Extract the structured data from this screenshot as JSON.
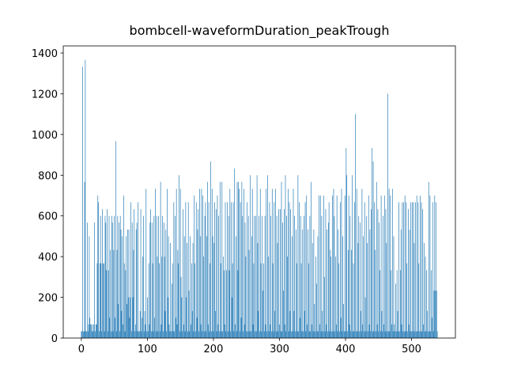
{
  "chart_data": {
    "type": "bar",
    "title": "bombcell-waveformDuration_peakTrough",
    "color": "#1f77b4",
    "xlim": [
      -27.4,
      566.4
    ],
    "xticks": [
      0,
      100,
      200,
      300,
      400,
      500
    ],
    "ylim": [
      0,
      1435
    ],
    "yticks": [
      0,
      200,
      400,
      600,
      800,
      1000,
      1200,
      1400
    ],
    "values": [
      33,
      33,
      1333,
      33,
      33,
      767,
      1367,
      33,
      33,
      567,
      33,
      67,
      500,
      100,
      67,
      67,
      33,
      67,
      33,
      67,
      567,
      33,
      67,
      67,
      367,
      700,
      667,
      33,
      367,
      600,
      367,
      33,
      633,
      367,
      367,
      33,
      600,
      567,
      333,
      633,
      33,
      333,
      600,
      100,
      433,
      33,
      600,
      567,
      33,
      433,
      600,
      100,
      967,
      33,
      433,
      600,
      167,
      567,
      33,
      600,
      533,
      133,
      500,
      67,
      700,
      367,
      33,
      333,
      500,
      167,
      533,
      200,
      533,
      100,
      200,
      667,
      33,
      567,
      200,
      433,
      633,
      33,
      67,
      533,
      567,
      33,
      667,
      33,
      33,
      133,
      633,
      33,
      100,
      400,
      600,
      33,
      133,
      67,
      733,
      33,
      200,
      33,
      367,
      67,
      567,
      633,
      33,
      567,
      367,
      33,
      600,
      100,
      733,
      33,
      600,
      400,
      33,
      600,
      367,
      33,
      767,
      67,
      400,
      600,
      33,
      567,
      400,
      133,
      533,
      33,
      733,
      200,
      500,
      67,
      33,
      467,
      33,
      267,
      367,
      33,
      667,
      33,
      600,
      100,
      733,
      67,
      433,
      367,
      800,
      33,
      733,
      300,
      200,
      33,
      633,
      67,
      500,
      33,
      667,
      200,
      467,
      33,
      667,
      233,
      33,
      500,
      67,
      367,
      133,
      467,
      33,
      700,
      367,
      33,
      667,
      100,
      533,
      633,
      33,
      733,
      500,
      67,
      733,
      33,
      700,
      400,
      33,
      600,
      667,
      33,
      500,
      767,
      67,
      667,
      33,
      367,
      867,
      33,
      733,
      500,
      33,
      467,
      667,
      133,
      633,
      33,
      700,
      67,
      600,
      33,
      767,
      367,
      33,
      767,
      33,
      400,
      333,
      67,
      667,
      33,
      333,
      667,
      33,
      600,
      333,
      733,
      33,
      667,
      200,
      367,
      667,
      33,
      833,
      67,
      500,
      33,
      767,
      333,
      767,
      733,
      33,
      667,
      100,
      767,
      600,
      33,
      733,
      67,
      567,
      400,
      33,
      667,
      33,
      600,
      433,
      33,
      800,
      33,
      500,
      733,
      67,
      367,
      600,
      33,
      600,
      33,
      800,
      467,
      133,
      600,
      33,
      733,
      367,
      33,
      600,
      233,
      367,
      33,
      600,
      67,
      733,
      33,
      800,
      400,
      33,
      667,
      67,
      600,
      33,
      733,
      367,
      33,
      667,
      133,
      733,
      33,
      600,
      467,
      33,
      633,
      67,
      633,
      33,
      767,
      33,
      567,
      233,
      633,
      67,
      800,
      33,
      600,
      400,
      733,
      33,
      667,
      133,
      633,
      33,
      500,
      33,
      733,
      133,
      600,
      33,
      533,
      367,
      33,
      800,
      33,
      667,
      100,
      600,
      367,
      33,
      533,
      33,
      600,
      133,
      667,
      33,
      700,
      67,
      533,
      367,
      33,
      600,
      33,
      767,
      67,
      467,
      33,
      533,
      167,
      33,
      400,
      267,
      33,
      500,
      33,
      700,
      67,
      700,
      33,
      600,
      133,
      33,
      700,
      300,
      33,
      633,
      67,
      533,
      33,
      567,
      667,
      33,
      433,
      400,
      33,
      700,
      33,
      733,
      600,
      33,
      400,
      67,
      700,
      33,
      533,
      367,
      33,
      667,
      100,
      733,
      33,
      500,
      167,
      33,
      700,
      33,
      933,
      800,
      33,
      433,
      700,
      67,
      600,
      33,
      433,
      800,
      33,
      367,
      33,
      667,
      1100,
      33,
      733,
      33,
      467,
      600,
      33,
      567,
      133,
      33,
      733,
      67,
      500,
      33,
      667,
      200,
      33,
      600,
      467,
      33,
      700,
      67,
      533,
      33,
      633,
      933,
      33,
      867,
      33,
      667,
      433,
      33,
      767,
      67,
      633,
      33,
      567,
      333,
      33,
      700,
      133,
      33,
      600,
      67,
      700,
      33,
      633,
      467,
      33,
      1200,
      33,
      733,
      33,
      700,
      333,
      67,
      733,
      33,
      500,
      67,
      33,
      267,
      33,
      333,
      133,
      33,
      667,
      33,
      333,
      533,
      67,
      667,
      33,
      667,
      33,
      700,
      33,
      667,
      367,
      33,
      633,
      67,
      533,
      33,
      667,
      33,
      667,
      33,
      667,
      467,
      33,
      667,
      33,
      700,
      33,
      667,
      367,
      33,
      700,
      33,
      667,
      33,
      633,
      67,
      467,
      33,
      400,
      33,
      333,
      133,
      33,
      767,
      33,
      700,
      33,
      333,
      100,
      667,
      33,
      233,
      700,
      233,
      667,
      233,
      33
    ]
  }
}
